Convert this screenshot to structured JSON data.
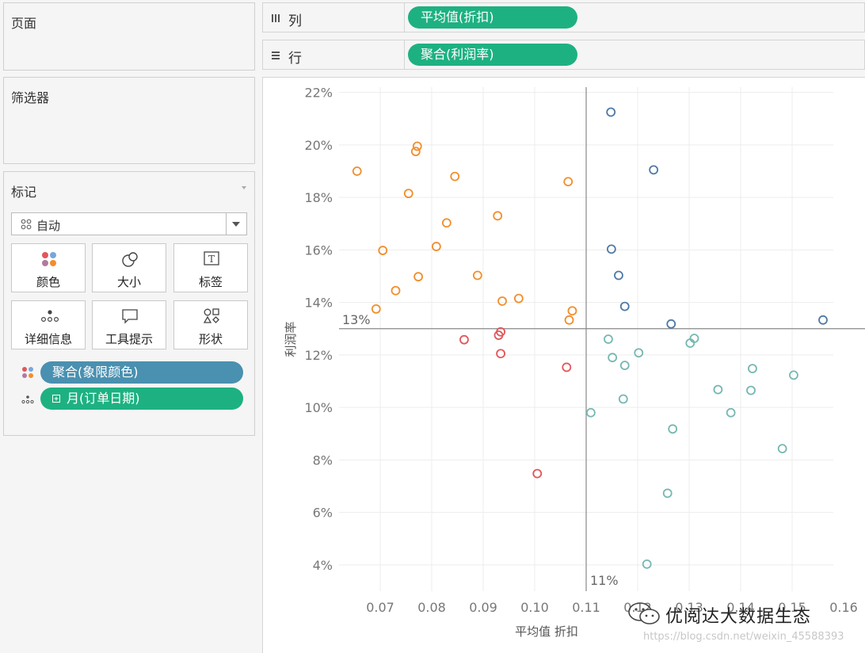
{
  "sidebar": {
    "pages": {
      "title": "页面"
    },
    "filters": {
      "title": "筛选器"
    },
    "marks": {
      "title": "标记",
      "mark_type": "自动",
      "buttons": [
        {
          "label": "颜色",
          "icon": "color-icon"
        },
        {
          "label": "大小",
          "icon": "size-icon"
        },
        {
          "label": "标签",
          "icon": "label-icon"
        },
        {
          "label": "详细信息",
          "icon": "detail-icon"
        },
        {
          "label": "工具提示",
          "icon": "tooltip-icon"
        },
        {
          "label": "形状",
          "icon": "shape-icon"
        }
      ],
      "fields": [
        {
          "label": "聚合(象限颜色)",
          "icon": "color-icon",
          "color": "#4a90b0"
        },
        {
          "label": "月(订单日期)",
          "icon": "detail-icon",
          "color": "#1db181"
        }
      ]
    }
  },
  "shelves": {
    "columns": {
      "label": "列",
      "pill": "平均值(折扣)"
    },
    "rows": {
      "label": "行",
      "pill": "聚合(利润率)"
    }
  },
  "chart_data": {
    "type": "scatter",
    "xlabel": "平均值 折扣",
    "ylabel": "利润率",
    "xlim": [
      0.062,
      0.158
    ],
    "ylim": [
      0.03,
      0.222
    ],
    "xticks": [
      0.07,
      0.08,
      0.09,
      0.1,
      0.11,
      0.12,
      0.13,
      0.14,
      0.15,
      0.16
    ],
    "yticks": [
      0.04,
      0.06,
      0.08,
      0.1,
      0.12,
      0.14,
      0.16,
      0.18,
      0.2,
      0.22
    ],
    "reference_lines": {
      "x": {
        "value": 0.11,
        "label": "11%"
      },
      "y": {
        "value": 0.13,
        "label": "13%"
      }
    },
    "grid": true,
    "series": [
      {
        "color": "#f28e2b",
        "points": [
          [
            0.0655,
            0.19
          ],
          [
            0.0772,
            0.1995
          ],
          [
            0.0769,
            0.1975
          ],
          [
            0.0845,
            0.188
          ],
          [
            0.0755,
            0.1815
          ],
          [
            0.1065,
            0.186
          ],
          [
            0.0928,
            0.173
          ],
          [
            0.0829,
            0.1703
          ],
          [
            0.0809,
            0.1613
          ],
          [
            0.0705,
            0.1598
          ],
          [
            0.0889,
            0.1503
          ],
          [
            0.0774,
            0.1498
          ],
          [
            0.073,
            0.1445
          ],
          [
            0.0937,
            0.1405
          ],
          [
            0.0969,
            0.1415
          ],
          [
            0.0692,
            0.1375
          ],
          [
            0.1073,
            0.1368
          ],
          [
            0.1067,
            0.1333
          ]
        ]
      },
      {
        "color": "#4e79a7",
        "points": [
          [
            0.1148,
            0.2125
          ],
          [
            0.1231,
            0.1905
          ],
          [
            0.1149,
            0.1603
          ],
          [
            0.1163,
            0.1503
          ],
          [
            0.1175,
            0.1385
          ],
          [
            0.1265,
            0.1318
          ],
          [
            0.156,
            0.1333
          ]
        ]
      },
      {
        "color": "#e15759",
        "points": [
          [
            0.0863,
            0.1258
          ],
          [
            0.0934,
            0.1288
          ],
          [
            0.093,
            0.1275
          ],
          [
            0.0934,
            0.1205
          ],
          [
            0.1062,
            0.1153
          ],
          [
            0.1005,
            0.0748
          ]
        ]
      },
      {
        "color": "#76b7b2",
        "points": [
          [
            0.1143,
            0.126
          ],
          [
            0.1151,
            0.119
          ],
          [
            0.1202,
            0.1208
          ],
          [
            0.1175,
            0.116
          ],
          [
            0.1302,
            0.1245
          ],
          [
            0.131,
            0.1263
          ],
          [
            0.1423,
            0.1148
          ],
          [
            0.1503,
            0.1123
          ],
          [
            0.1356,
            0.1068
          ],
          [
            0.142,
            0.1065
          ],
          [
            0.1172,
            0.1032
          ],
          [
            0.1109,
            0.098
          ],
          [
            0.1381,
            0.098
          ],
          [
            0.1268,
            0.0918
          ],
          [
            0.1481,
            0.0843
          ],
          [
            0.1258,
            0.0673
          ],
          [
            0.1218,
            0.0403
          ]
        ]
      }
    ]
  },
  "watermark": {
    "title": "优阅达大数据生态",
    "url": "https://blog.csdn.net/weixin_45588393"
  }
}
